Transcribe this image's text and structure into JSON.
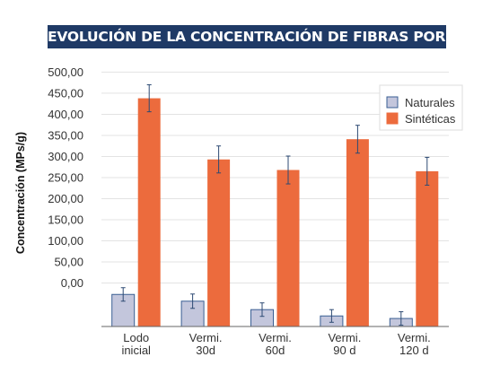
{
  "chart_data": {
    "type": "bar",
    "title": "EVOLUCIÓN DE LA CONCENTRACIÓN DE FIBRAS POR SU NATURALEZA",
    "xlabel": "",
    "ylabel": "Concentración (MPs/g)",
    "y_tick_labels": [
      "0,00",
      "50,00",
      "100,00",
      "150,00",
      "200,00",
      "250,00",
      "300,00",
      "350,00",
      "400,00",
      "450,00",
      "500,00"
    ],
    "categories": [
      [
        "Lodo",
        "inicial"
      ],
      [
        "Vermi.",
        "30d"
      ],
      [
        "Vermi.",
        "60d"
      ],
      [
        "Vermi.",
        "90 d"
      ],
      [
        "Vermi.",
        "120 d"
      ]
    ],
    "series": [
      {
        "name": "Naturales",
        "color": "#c3c6dc",
        "stroke": "#3a5f93",
        "values": [
          -27,
          -43,
          -63,
          -78,
          -84
        ],
        "errors": [
          16,
          17,
          16,
          15,
          16
        ]
      },
      {
        "name": "Sintéticas",
        "color": "#ec6b3d",
        "stroke": "#ec6b3d",
        "values": [
          438,
          293,
          268,
          341,
          265
        ],
        "errors": [
          32,
          32,
          33,
          33,
          33
        ]
      }
    ],
    "ylim": [
      -103,
      503
    ],
    "grid": true,
    "legend_position": "top-right"
  }
}
